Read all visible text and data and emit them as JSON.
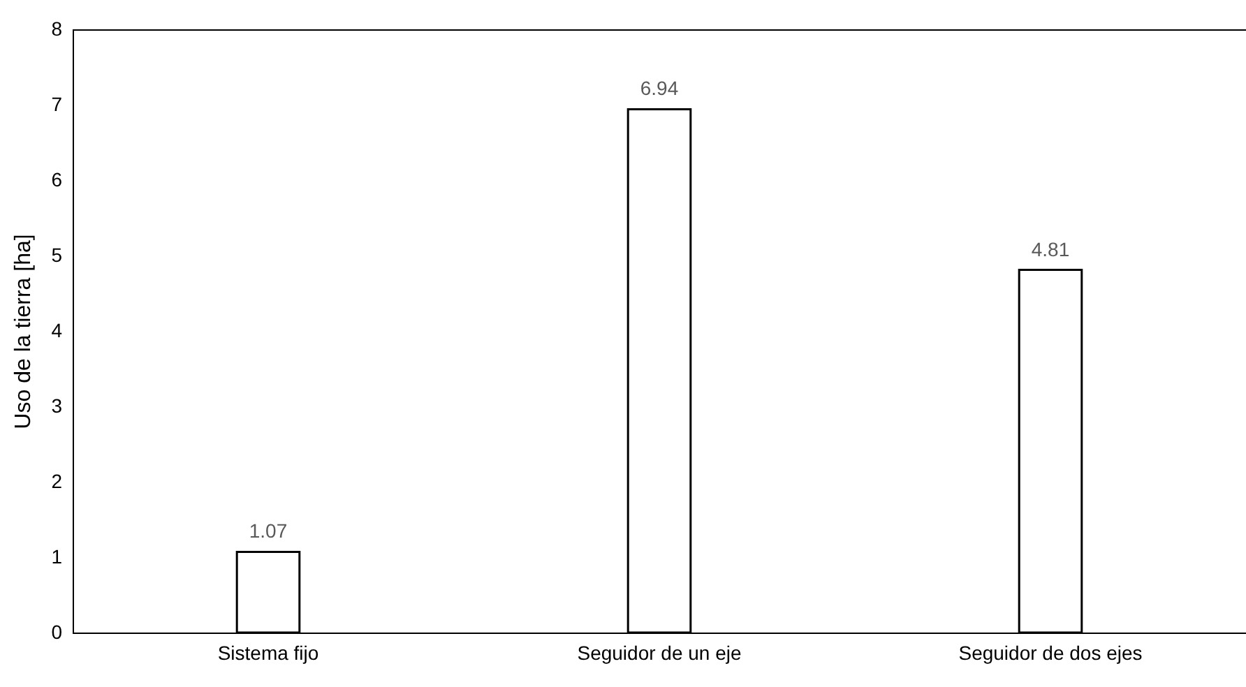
{
  "chart_data": {
    "type": "bar",
    "ylabel": "Uso de la tierra [ha]",
    "categories": [
      "Sistema fijo",
      "Seguidor de un eje",
      "Seguidor de dos ejes"
    ],
    "values": [
      1.07,
      6.94,
      4.81
    ],
    "color": "#ffffff",
    "ylim": [
      0,
      8
    ],
    "yticks": [
      0,
      1,
      2,
      3,
      4,
      5,
      6,
      7,
      8
    ],
    "grid": false,
    "data_labels": true
  }
}
